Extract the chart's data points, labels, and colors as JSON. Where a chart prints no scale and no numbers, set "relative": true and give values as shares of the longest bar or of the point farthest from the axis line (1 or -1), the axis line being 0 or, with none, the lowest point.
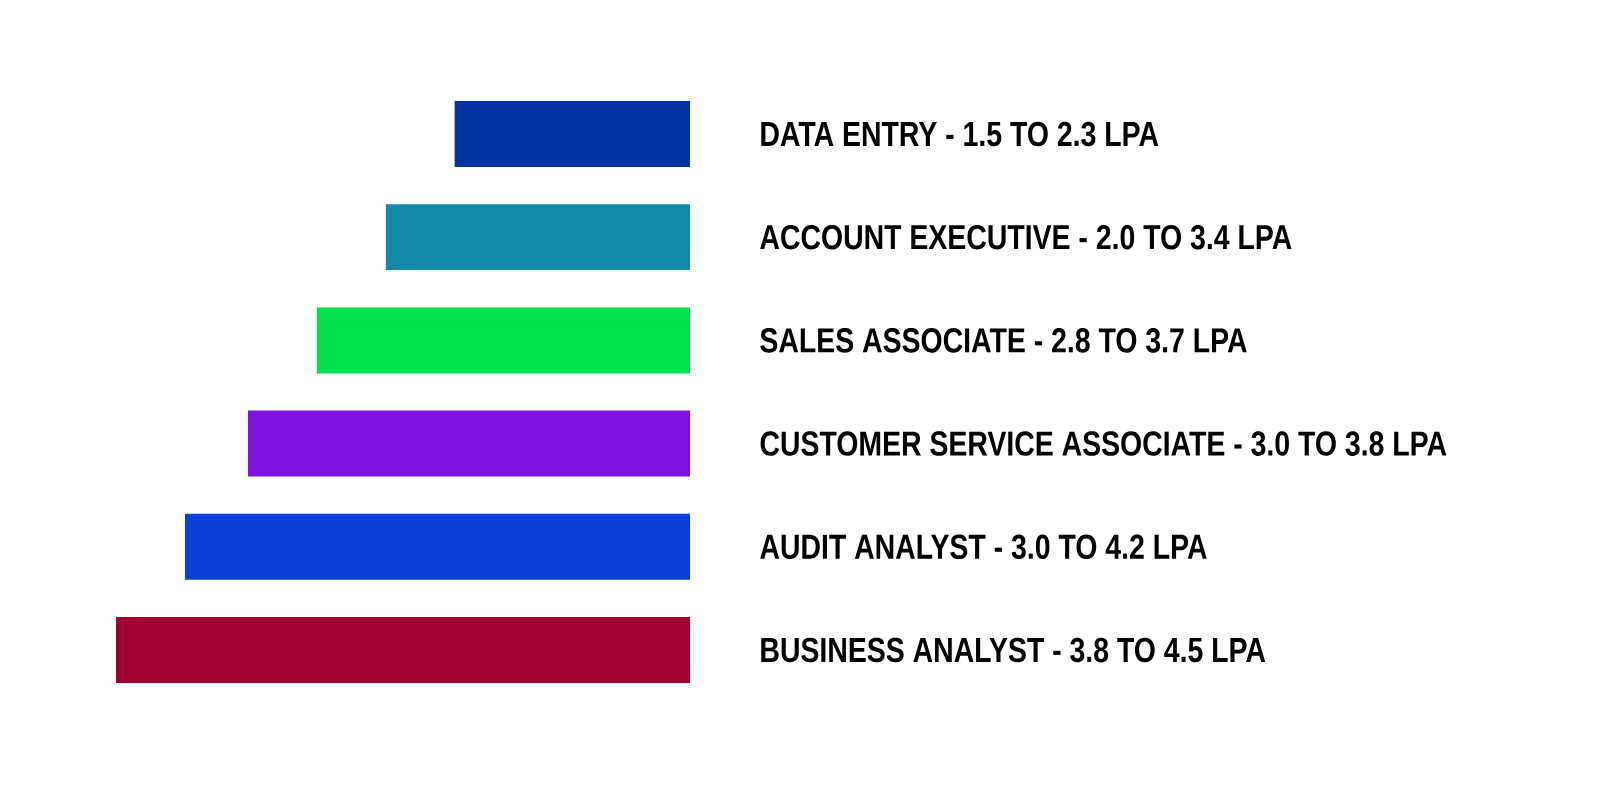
{
  "chart_data": {
    "type": "bar",
    "orientation": "horizontal",
    "relative": true,
    "categories": [
      "DATA ENTRY - 1.5 TO 2.3 LPA",
      "ACCOUNT EXECUTIVE - 2.0 TO 3.4 LPA",
      "SALES ASSOCIATE - 2.8 TO 3.7 LPA",
      "CUSTOMER SERVICE ASSOCIATE - 3.0 TO 3.8 LPA",
      "AUDIT ANALYST - 3.0 TO 4.2 LPA",
      "BUSINESS ANALYST - 3.8 TO 4.5 LPA"
    ],
    "values": [
      0.41,
      0.53,
      0.65,
      0.77,
      0.88,
      1
    ],
    "colors": [
      "#0033a0",
      "#158aa8",
      "#00e04a",
      "#7f10df",
      "#0a40d8",
      "#a0002f"
    ]
  }
}
